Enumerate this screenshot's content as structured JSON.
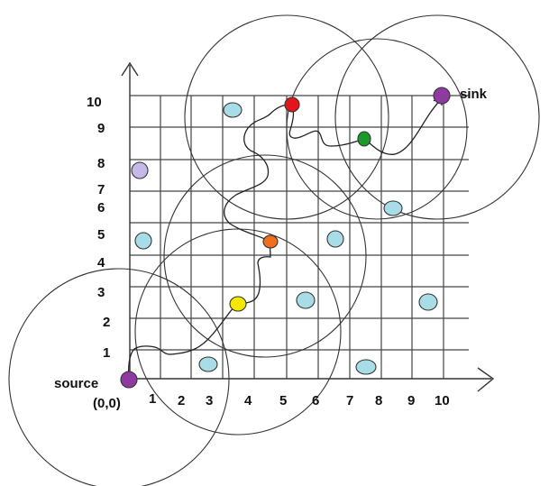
{
  "diagram": {
    "source_label": "source",
    "origin_label": "(0,0)",
    "sink_label": "sink",
    "x_tick_labels": [
      "1",
      "2",
      "3",
      "4",
      "5",
      "6",
      "7",
      "8",
      "9",
      "10"
    ],
    "y_tick_labels": [
      "1",
      "2",
      "3",
      "4",
      "5",
      "6",
      "7",
      "8",
      "9",
      "10"
    ]
  },
  "colors": {
    "source": "#8e3aa0",
    "sink": "#8e3aa0",
    "sensor_fill": "#a8dde8",
    "sensor_light": "#c6b8e8",
    "red": "#e4141c",
    "green": "#1a9a28",
    "orange": "#f26d1c",
    "yellow": "#f5e800",
    "grid": "#444444"
  }
}
